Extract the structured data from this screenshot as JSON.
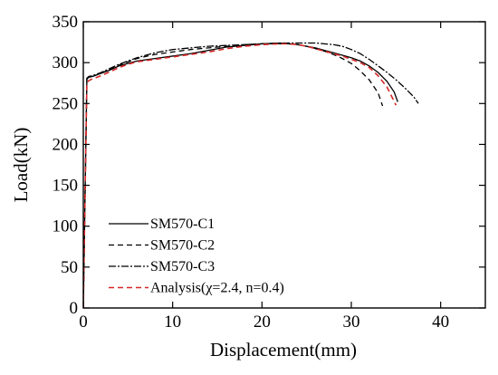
{
  "chart_data": {
    "type": "line",
    "title": "",
    "xlabel": "Displacement(mm)",
    "ylabel": "Load(kN)",
    "xlim": [
      0,
      45
    ],
    "ylim": [
      0,
      350
    ],
    "xticks": [
      0,
      10,
      20,
      30,
      40
    ],
    "xtick_labels": [
      "0",
      "10",
      "20",
      "30",
      "40"
    ],
    "yticks": [
      0,
      50,
      100,
      150,
      200,
      250,
      300,
      350
    ],
    "ytick_labels": [
      "0",
      "50",
      "100",
      "150",
      "200",
      "250",
      "300",
      "350"
    ],
    "grid": false,
    "legend_position": "bottom-left",
    "series": [
      {
        "name": "SM570-C1",
        "style": "solid",
        "color": "#000000",
        "x": [
          0,
          0.2,
          0.4,
          0.6,
          1,
          2,
          3,
          4,
          5,
          6,
          8,
          10,
          12,
          14,
          16,
          18,
          20,
          22,
          24,
          25,
          26,
          27,
          28,
          29,
          30,
          31,
          32,
          33,
          34,
          34.8,
          35.2
        ],
        "y": [
          0,
          140,
          280,
          282,
          283,
          287,
          291,
          296,
          299,
          302,
          305,
          308,
          311,
          315,
          319,
          321,
          323,
          324,
          322,
          320,
          318,
          315,
          312,
          309,
          306,
          302,
          296,
          288,
          277,
          264,
          252
        ]
      },
      {
        "name": "SM570-C2",
        "style": "dashed",
        "color": "#000000",
        "x": [
          0,
          0.2,
          0.4,
          0.6,
          1,
          2,
          3,
          4,
          5,
          6,
          8,
          10,
          12,
          14,
          16,
          18,
          20,
          22,
          23,
          24,
          25,
          26,
          27,
          28,
          29,
          30,
          31,
          32,
          33,
          33.5
        ],
        "y": [
          0,
          140,
          280,
          282,
          283,
          287,
          292,
          297,
          301,
          305,
          310,
          313,
          316,
          318,
          320,
          322,
          323,
          323,
          323,
          322,
          320,
          317,
          314,
          310,
          305,
          299,
          290,
          279,
          263,
          247
        ]
      },
      {
        "name": "SM570-C3",
        "style": "dashdot",
        "color": "#000000",
        "x": [
          0,
          0.2,
          0.4,
          0.6,
          1,
          2,
          3,
          4,
          5,
          6,
          8,
          10,
          12,
          14,
          16,
          18,
          20,
          22,
          24,
          26,
          28,
          29,
          30,
          31,
          32,
          33,
          34,
          35,
          36,
          37,
          37.5
        ],
        "y": [
          0,
          140,
          281,
          283,
          284,
          288,
          293,
          298,
          302,
          306,
          312,
          316,
          318,
          320,
          321,
          322,
          323,
          324,
          324,
          324,
          322,
          320,
          316,
          311,
          304,
          296,
          288,
          279,
          269,
          258,
          250
        ]
      },
      {
        "name": "Analysis(χ=2.4, n=0.4)",
        "style": "dashed",
        "color": "#d62728",
        "x": [
          0,
          0.2,
          0.4,
          0.6,
          1,
          2,
          3,
          4,
          5,
          6,
          8,
          10,
          12,
          14,
          16,
          18,
          20,
          22,
          23,
          24,
          25,
          26,
          27,
          28,
          29,
          30,
          31,
          32,
          33,
          34,
          35
        ],
        "y": [
          0,
          140,
          275,
          278,
          280,
          284,
          289,
          294,
          298,
          301,
          304,
          307,
          310,
          313,
          317,
          320,
          322,
          323,
          323,
          322,
          320,
          317,
          314,
          311,
          308,
          304,
          300,
          294,
          284,
          270,
          248
        ]
      }
    ]
  }
}
